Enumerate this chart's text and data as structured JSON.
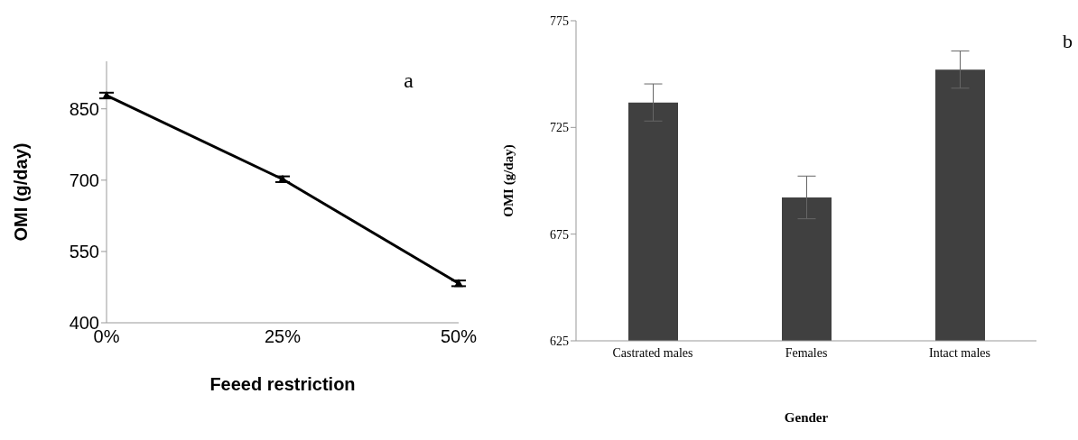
{
  "chart_data": [
    {
      "type": "line",
      "xlabel": "Feeed restriction",
      "ylabel": "OMI (g/day)",
      "annotations": [
        "a"
      ],
      "categories": [
        "0%",
        "25%",
        "50%"
      ],
      "series": [
        {
          "color": "#000000",
          "values": [
            878,
            702,
            483
          ],
          "errors": [
            6,
            6,
            6
          ]
        }
      ],
      "ylim": [
        400,
        950
      ],
      "yticks": [
        400,
        550,
        700,
        850
      ],
      "grid": false,
      "legend": false,
      "marker": "triangle",
      "line_style": "solid"
    },
    {
      "type": "bar",
      "xlabel": "Gender",
      "ylabel": "OMI (g/day)",
      "annotations": [
        "b"
      ],
      "categories": [
        "Castrated males",
        "Females",
        "Intact males"
      ],
      "series": [
        {
          "color": "#404040",
          "values": [
            736.7,
            692.2,
            752.1
          ],
          "errors": [
            8.7,
            10,
            8.7
          ]
        }
      ],
      "ylim": [
        625,
        775
      ],
      "yticks": [
        625,
        675,
        725,
        775
      ],
      "grid": false,
      "legend": false
    }
  ]
}
